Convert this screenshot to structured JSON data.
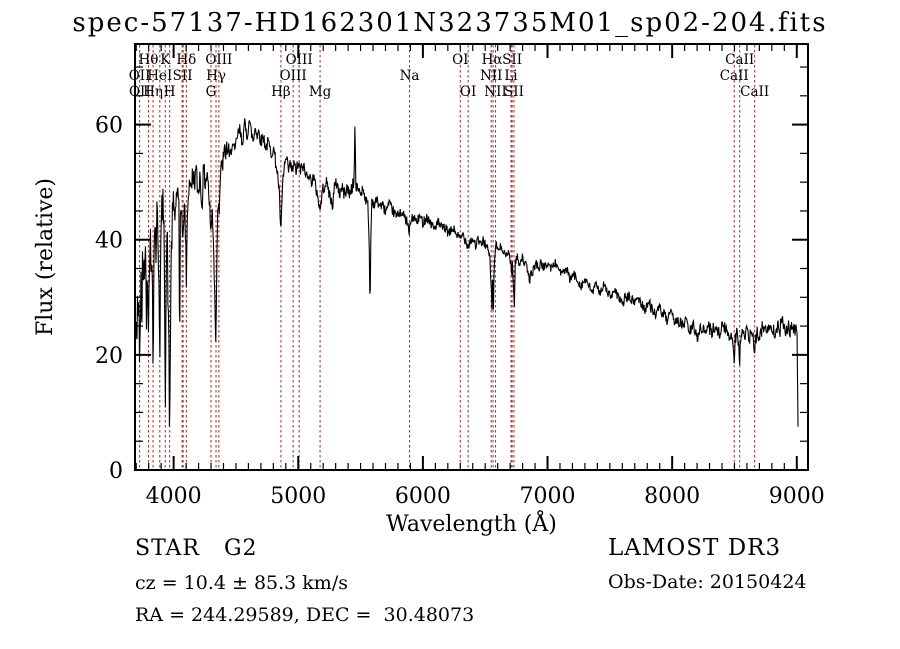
{
  "title": "spec-57137-HD162301N323735M01_sp02-204.fits",
  "footer": {
    "class_label": "STAR   G2",
    "cz_line": "cz = 10.4 ± 85.3 km/s",
    "radec_line": "RA = 244.29589, DEC =  30.48073",
    "survey": "LAMOST DR3",
    "obs_date": "Obs-Date: 20150424"
  },
  "chart_data": {
    "type": "line",
    "title": "spec-57137-HD162301N323735M01_sp02-204.fits",
    "xlabel": "Wavelength (Å)",
    "ylabel": "Flux (relative)",
    "xlim": [
      3690,
      9090
    ],
    "ylim": [
      0,
      74
    ],
    "x_major_ticks": [
      4000,
      5000,
      6000,
      7000,
      8000,
      9000
    ],
    "x_minor_step": 100,
    "y_major_ticks": [
      0,
      20,
      40,
      60
    ],
    "y_minor_step": 5,
    "grid": false,
    "legend": "none",
    "line_color": "#000000",
    "marker_line_color": "#9e2b25",
    "frame_color": "#000000",
    "line_markers": [
      {
        "label": "OII",
        "wavelength": 3727,
        "row": 2
      },
      {
        "label": "OII",
        "wavelength": 3729,
        "row": 3
      },
      {
        "label": "Hθ",
        "wavelength": 3798,
        "row": 1
      },
      {
        "label": "Hη",
        "wavelength": 3835,
        "row": 3
      },
      {
        "label": "HeI",
        "wavelength": 3889,
        "row": 2
      },
      {
        "label": "K",
        "wavelength": 3933,
        "row": 1
      },
      {
        "label": "H",
        "wavelength": 3968,
        "row": 3
      },
      {
        "label": "SII",
        "wavelength": 4072,
        "row": 2
      },
      {
        "label": "Hδ",
        "wavelength": 4102,
        "row": 1
      },
      {
        "label": "G",
        "wavelength": 4300,
        "row": 3
      },
      {
        "label": "Hγ",
        "wavelength": 4340,
        "row": 2
      },
      {
        "label": "OIII",
        "wavelength": 4363,
        "row": 1
      },
      {
        "label": "Hβ",
        "wavelength": 4861,
        "row": 3
      },
      {
        "label": "OIII",
        "wavelength": 4959,
        "row": 2
      },
      {
        "label": "OIII",
        "wavelength": 5007,
        "row": 1
      },
      {
        "label": "Mg",
        "wavelength": 5175,
        "row": 3
      },
      {
        "label": "Na",
        "wavelength": 5893,
        "row": 2
      },
      {
        "label": "OI",
        "wavelength": 6300,
        "row": 1
      },
      {
        "label": "OI",
        "wavelength": 6363,
        "row": 3
      },
      {
        "label": "NII",
        "wavelength": 6548,
        "row": 2
      },
      {
        "label": "Hα",
        "wavelength": 6555,
        "row": 1
      },
      {
        "label": "NII",
        "wavelength": 6583,
        "row": 3
      },
      {
        "label": "Li",
        "wavelength": 6707,
        "row": 2
      },
      {
        "label": "SII",
        "wavelength": 6716,
        "row": 1
      },
      {
        "label": "SII",
        "wavelength": 6731,
        "row": 3
      },
      {
        "label": "CaII",
        "wavelength": 8498,
        "row": 2
      },
      {
        "label": "CaII",
        "wavelength": 8542,
        "row": 1
      },
      {
        "label": "CaII",
        "wavelength": 8662,
        "row": 3
      }
    ],
    "dashed_lines": [
      3727,
      3798,
      3835,
      3889,
      3933,
      3968,
      4068,
      4076,
      4102,
      4300,
      4340,
      4363,
      4861,
      4959,
      5007,
      5175,
      5893,
      6300,
      6363,
      6548,
      6563,
      6583,
      6707,
      6716,
      6731,
      8498,
      8542,
      8662
    ],
    "spectrum_points": [
      [
        3690,
        2
      ],
      [
        3693,
        30
      ],
      [
        3696,
        8
      ],
      [
        3700,
        34
      ],
      [
        3704,
        14
      ],
      [
        3708,
        38
      ],
      [
        3712,
        22
      ],
      [
        3716,
        36
      ],
      [
        3720,
        18
      ],
      [
        3724,
        33
      ],
      [
        3727,
        12
      ],
      [
        3731,
        30
      ],
      [
        3735,
        20
      ],
      [
        3739,
        36
      ],
      [
        3744,
        24
      ],
      [
        3750,
        38
      ],
      [
        3756,
        28
      ],
      [
        3762,
        40
      ],
      [
        3768,
        30
      ],
      [
        3774,
        42
      ],
      [
        3781,
        26
      ],
      [
        3788,
        38
      ],
      [
        3794,
        30
      ],
      [
        3798,
        22
      ],
      [
        3804,
        36
      ],
      [
        3812,
        42
      ],
      [
        3820,
        32
      ],
      [
        3828,
        38
      ],
      [
        3835,
        19
      ],
      [
        3842,
        36
      ],
      [
        3850,
        44
      ],
      [
        3858,
        38
      ],
      [
        3866,
        45
      ],
      [
        3874,
        40
      ],
      [
        3882,
        34
      ],
      [
        3889,
        20
      ],
      [
        3896,
        38
      ],
      [
        3904,
        44
      ],
      [
        3912,
        47
      ],
      [
        3920,
        42
      ],
      [
        3927,
        36
      ],
      [
        3933,
        11
      ],
      [
        3940,
        34
      ],
      [
        3948,
        42
      ],
      [
        3955,
        30
      ],
      [
        3961,
        22
      ],
      [
        3968,
        4
      ],
      [
        3976,
        30
      ],
      [
        3984,
        40
      ],
      [
        3992,
        44
      ],
      [
        4000,
        46
      ],
      [
        4010,
        44
      ],
      [
        4020,
        47
      ],
      [
        4030,
        49
      ],
      [
        4042,
        45
      ],
      [
        4048,
        17
      ],
      [
        4054,
        44
      ],
      [
        4060,
        47
      ],
      [
        4070,
        42
      ],
      [
        4076,
        38
      ],
      [
        4084,
        47
      ],
      [
        4092,
        44
      ],
      [
        4102,
        33
      ],
      [
        4112,
        46
      ],
      [
        4122,
        49
      ],
      [
        4132,
        51
      ],
      [
        4142,
        48
      ],
      [
        4152,
        52
      ],
      [
        4165,
        50
      ],
      [
        4180,
        52
      ],
      [
        4195,
        48
      ],
      [
        4210,
        51
      ],
      [
        4227,
        46
      ],
      [
        4240,
        52
      ],
      [
        4255,
        50
      ],
      [
        4270,
        52
      ],
      [
        4285,
        47
      ],
      [
        4300,
        41
      ],
      [
        4310,
        45
      ],
      [
        4320,
        40
      ],
      [
        4330,
        30
      ],
      [
        4340,
        22
      ],
      [
        4348,
        40
      ],
      [
        4356,
        48
      ],
      [
        4365,
        45
      ],
      [
        4375,
        51
      ],
      [
        4390,
        53
      ],
      [
        4410,
        55
      ],
      [
        4430,
        56
      ],
      [
        4450,
        54
      ],
      [
        4470,
        57
      ],
      [
        4490,
        55
      ],
      [
        4510,
        58
      ],
      [
        4530,
        59
      ],
      [
        4550,
        57
      ],
      [
        4570,
        60
      ],
      [
        4590,
        58
      ],
      [
        4605,
        61
      ],
      [
        4620,
        59
      ],
      [
        4640,
        57
      ],
      [
        4655,
        60
      ],
      [
        4670,
        58
      ],
      [
        4685,
        59
      ],
      [
        4700,
        57
      ],
      [
        4720,
        58
      ],
      [
        4740,
        56
      ],
      [
        4760,
        57
      ],
      [
        4780,
        55
      ],
      [
        4800,
        56
      ],
      [
        4815,
        54
      ],
      [
        4830,
        52
      ],
      [
        4845,
        49
      ],
      [
        4861,
        41
      ],
      [
        4875,
        50
      ],
      [
        4890,
        53
      ],
      [
        4905,
        54
      ],
      [
        4920,
        52
      ],
      [
        4935,
        53
      ],
      [
        4950,
        52
      ],
      [
        4965,
        53
      ],
      [
        4980,
        52
      ],
      [
        5000,
        53
      ],
      [
        5020,
        52
      ],
      [
        5040,
        53
      ],
      [
        5060,
        51
      ],
      [
        5080,
        52
      ],
      [
        5100,
        50
      ],
      [
        5120,
        51
      ],
      [
        5140,
        49
      ],
      [
        5155,
        48
      ],
      [
        5167,
        46
      ],
      [
        5175,
        45
      ],
      [
        5185,
        47
      ],
      [
        5200,
        49
      ],
      [
        5220,
        50
      ],
      [
        5240,
        49
      ],
      [
        5260,
        47
      ],
      [
        5275,
        46
      ],
      [
        5290,
        49
      ],
      [
        5310,
        50
      ],
      [
        5330,
        48
      ],
      [
        5350,
        49
      ],
      [
        5370,
        48
      ],
      [
        5390,
        49
      ],
      [
        5410,
        48
      ],
      [
        5430,
        49
      ],
      [
        5448,
        50
      ],
      [
        5455,
        61
      ],
      [
        5462,
        49
      ],
      [
        5480,
        49
      ],
      [
        5500,
        48
      ],
      [
        5520,
        49
      ],
      [
        5540,
        47
      ],
      [
        5560,
        46
      ],
      [
        5570,
        38
      ],
      [
        5576,
        27
      ],
      [
        5582,
        40
      ],
      [
        5590,
        47
      ],
      [
        5610,
        46
      ],
      [
        5630,
        47
      ],
      [
        5650,
        46
      ],
      [
        5675,
        46
      ],
      [
        5700,
        45
      ],
      [
        5730,
        46
      ],
      [
        5760,
        45
      ],
      [
        5790,
        44
      ],
      [
        5820,
        45
      ],
      [
        5850,
        44
      ],
      [
        5875,
        43
      ],
      [
        5890,
        41
      ],
      [
        5900,
        43
      ],
      [
        5925,
        44
      ],
      [
        5950,
        43
      ],
      [
        5975,
        44
      ],
      [
        6000,
        43
      ],
      [
        6030,
        44
      ],
      [
        6060,
        43
      ],
      [
        6090,
        42
      ],
      [
        6120,
        43
      ],
      [
        6150,
        42
      ],
      [
        6180,
        42
      ],
      [
        6210,
        41
      ],
      [
        6240,
        42
      ],
      [
        6270,
        41
      ],
      [
        6300,
        40
      ],
      [
        6320,
        41
      ],
      [
        6340,
        40
      ],
      [
        6363,
        39
      ],
      [
        6385,
        40
      ],
      [
        6405,
        40
      ],
      [
        6425,
        39
      ],
      [
        6445,
        40
      ],
      [
        6465,
        39
      ],
      [
        6485,
        40
      ],
      [
        6505,
        39
      ],
      [
        6525,
        38
      ],
      [
        6540,
        36
      ],
      [
        6548,
        32
      ],
      [
        6554,
        28
      ],
      [
        6560,
        35
      ],
      [
        6566,
        28
      ],
      [
        6572,
        36
      ],
      [
        6580,
        38
      ],
      [
        6590,
        39
      ],
      [
        6610,
        38
      ],
      [
        6630,
        39
      ],
      [
        6650,
        38
      ],
      [
        6670,
        37
      ],
      [
        6690,
        38
      ],
      [
        6705,
        36
      ],
      [
        6712,
        34
      ],
      [
        6720,
        36
      ],
      [
        6727,
        31
      ],
      [
        6734,
        29
      ],
      [
        6742,
        36
      ],
      [
        6755,
        37
      ],
      [
        6775,
        36
      ],
      [
        6795,
        37
      ],
      [
        6815,
        36
      ],
      [
        6835,
        35
      ],
      [
        6855,
        33
      ],
      [
        6870,
        34
      ],
      [
        6890,
        35
      ],
      [
        6910,
        36
      ],
      [
        6930,
        35
      ],
      [
        6950,
        36
      ],
      [
        6975,
        35
      ],
      [
        7000,
        36
      ],
      [
        7030,
        35
      ],
      [
        7060,
        36
      ],
      [
        7090,
        35
      ],
      [
        7120,
        34
      ],
      [
        7150,
        35
      ],
      [
        7180,
        33
      ],
      [
        7210,
        34
      ],
      [
        7240,
        33
      ],
      [
        7270,
        32
      ],
      [
        7300,
        33
      ],
      [
        7330,
        32
      ],
      [
        7360,
        31
      ],
      [
        7390,
        32
      ],
      [
        7420,
        31
      ],
      [
        7450,
        32
      ],
      [
        7480,
        31
      ],
      [
        7510,
        30
      ],
      [
        7540,
        31
      ],
      [
        7570,
        30
      ],
      [
        7600,
        29
      ],
      [
        7630,
        30
      ],
      [
        7660,
        30
      ],
      [
        7690,
        29
      ],
      [
        7720,
        30
      ],
      [
        7750,
        29
      ],
      [
        7780,
        28
      ],
      [
        7810,
        29
      ],
      [
        7840,
        28
      ],
      [
        7870,
        27
      ],
      [
        7900,
        28
      ],
      [
        7930,
        27
      ],
      [
        7960,
        26
      ],
      [
        7990,
        27
      ],
      [
        8020,
        26
      ],
      [
        8050,
        26
      ],
      [
        8080,
        25
      ],
      [
        8110,
        26
      ],
      [
        8140,
        24
      ],
      [
        8170,
        25
      ],
      [
        8200,
        23
      ],
      [
        8230,
        25
      ],
      [
        8260,
        24
      ],
      [
        8290,
        25
      ],
      [
        8320,
        24
      ],
      [
        8350,
        25
      ],
      [
        8380,
        24
      ],
      [
        8410,
        25
      ],
      [
        8440,
        24
      ],
      [
        8460,
        23
      ],
      [
        8475,
        24
      ],
      [
        8490,
        22
      ],
      [
        8498,
        19
      ],
      [
        8506,
        23
      ],
      [
        8520,
        24
      ],
      [
        8535,
        22
      ],
      [
        8542,
        19
      ],
      [
        8550,
        23
      ],
      [
        8565,
        24
      ],
      [
        8580,
        23
      ],
      [
        8600,
        24
      ],
      [
        8620,
        23
      ],
      [
        8640,
        24
      ],
      [
        8655,
        22
      ],
      [
        8662,
        19
      ],
      [
        8670,
        23
      ],
      [
        8685,
        24
      ],
      [
        8705,
        23
      ],
      [
        8725,
        25
      ],
      [
        8745,
        24
      ],
      [
        8765,
        25
      ],
      [
        8785,
        24
      ],
      [
        8805,
        25
      ],
      [
        8825,
        24
      ],
      [
        8845,
        25
      ],
      [
        8865,
        24
      ],
      [
        8885,
        28
      ],
      [
        8895,
        25
      ],
      [
        8910,
        24
      ],
      [
        8930,
        25
      ],
      [
        8950,
        24
      ],
      [
        8970,
        25
      ],
      [
        8990,
        24
      ],
      [
        9002,
        24
      ],
      [
        9008,
        12
      ],
      [
        9012,
        2
      ]
    ],
    "noise": {
      "seed": 42,
      "step": 4,
      "regions": [
        [
          3690,
          3760,
          5
        ],
        [
          3760,
          4000,
          3.5
        ],
        [
          4000,
          4450,
          2
        ],
        [
          4450,
          5450,
          1.2
        ],
        [
          5450,
          6600,
          0.9
        ],
        [
          6600,
          7600,
          0.8
        ],
        [
          7600,
          8300,
          1.0
        ],
        [
          8300,
          9012,
          1.3
        ]
      ]
    }
  }
}
